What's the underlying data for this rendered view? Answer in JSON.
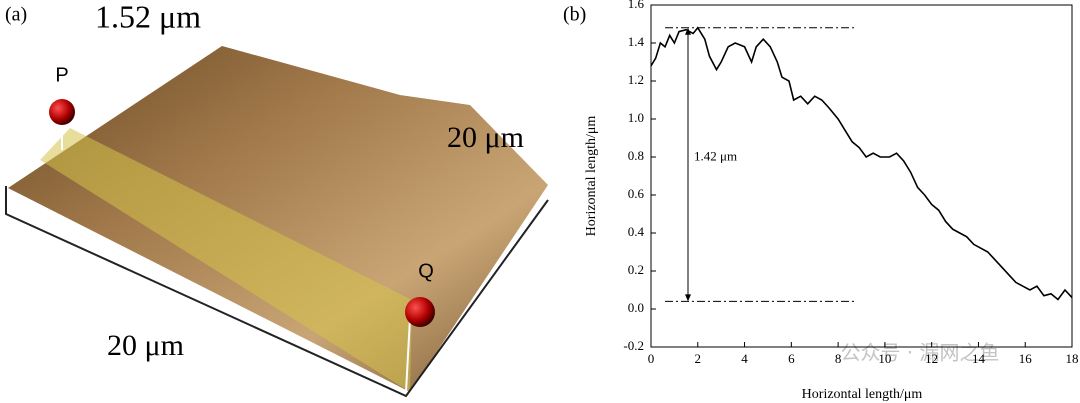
{
  "panel_a": {
    "label": "(a)",
    "height_text": "1.52 μm",
    "side_right": "20 μm",
    "side_front": "20 μm",
    "point_p": "P",
    "point_q": "Q"
  },
  "chart_data": {
    "type": "line",
    "panel_label": "(b)",
    "x_label": "Horizontal length/μm",
    "y_label": "Horizontal length/μm",
    "annotation": "1.42 μm",
    "reference_lines": [
      1.48,
      0.04
    ],
    "watermark": "公众号 · 漏网之鱼",
    "x": [
      0,
      0.2,
      0.4,
      0.6,
      0.8,
      1.0,
      1.2,
      1.5,
      1.8,
      2.0,
      2.3,
      2.5,
      2.8,
      3.0,
      3.3,
      3.6,
      4.0,
      4.3,
      4.5,
      4.8,
      5.1,
      5.4,
      5.6,
      5.9,
      6.1,
      6.4,
      6.7,
      7.0,
      7.3,
      7.6,
      8.0,
      8.3,
      8.6,
      8.9,
      9.2,
      9.5,
      9.8,
      10.2,
      10.5,
      10.8,
      11.1,
      11.4,
      11.7,
      12.0,
      12.3,
      12.6,
      12.9,
      13.2,
      13.5,
      13.8,
      14.1,
      14.4,
      14.7,
      15.0,
      15.3,
      15.6,
      15.9,
      16.2,
      16.5,
      16.8,
      17.1,
      17.4,
      17.7,
      18.0
    ],
    "series": [
      {
        "color": "#000000",
        "values": [
          1.28,
          1.32,
          1.4,
          1.38,
          1.44,
          1.4,
          1.46,
          1.47,
          1.45,
          1.48,
          1.42,
          1.33,
          1.26,
          1.3,
          1.38,
          1.4,
          1.38,
          1.3,
          1.38,
          1.42,
          1.38,
          1.3,
          1.22,
          1.2,
          1.1,
          1.12,
          1.08,
          1.12,
          1.1,
          1.06,
          1.0,
          0.94,
          0.88,
          0.85,
          0.8,
          0.82,
          0.8,
          0.8,
          0.82,
          0.78,
          0.72,
          0.64,
          0.6,
          0.55,
          0.52,
          0.46,
          0.42,
          0.4,
          0.38,
          0.34,
          0.32,
          0.3,
          0.26,
          0.22,
          0.18,
          0.14,
          0.12,
          0.1,
          0.12,
          0.07,
          0.08,
          0.05,
          0.1,
          0.06
        ]
      }
    ],
    "xlim": [
      0,
      18
    ],
    "xticks": [
      0,
      2,
      4,
      6,
      8,
      10,
      12,
      14,
      16,
      18
    ],
    "ylim": [
      -0.2,
      1.6
    ],
    "yticks": [
      -0.2,
      {
        "value": 0,
        "label": "0.0"
      },
      0.2,
      0.4,
      0.6,
      0.8,
      {
        "value": 1,
        "label": "1.0"
      },
      1.2,
      1.4,
      1.6
    ]
  }
}
